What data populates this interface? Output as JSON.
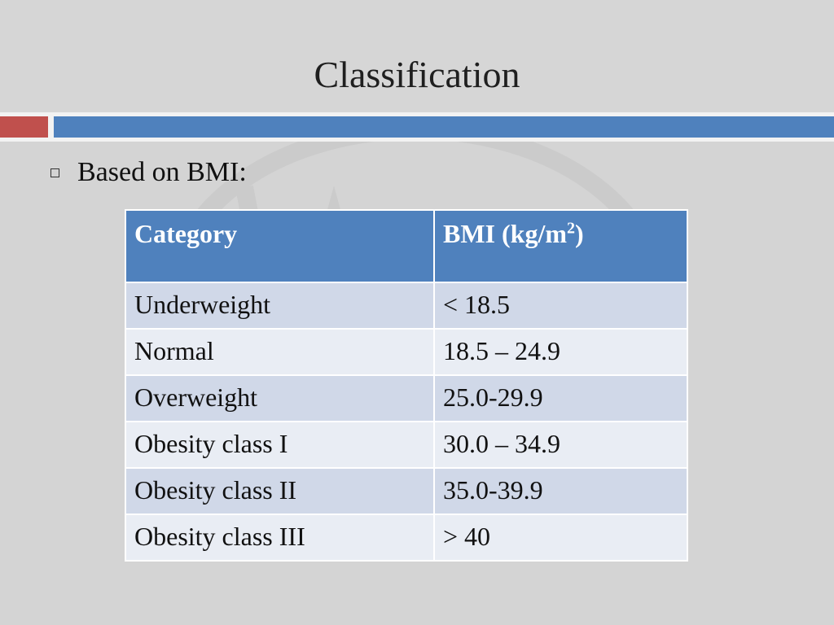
{
  "slide": {
    "title": "Classification",
    "bullet": "Based on BMI:"
  },
  "table": {
    "headers": {
      "category": "Category",
      "bmi_prefix": "BMI (kg/m",
      "bmi_superscript": "2",
      "bmi_suffix": ")"
    },
    "rows": [
      {
        "category": "Underweight",
        "bmi": "< 18.5"
      },
      {
        "category": "Normal",
        "bmi": "18.5 – 24.9"
      },
      {
        "category": "Overweight",
        "bmi": "25.0-29.9"
      },
      {
        "category": "Obesity class I",
        "bmi": "30.0 – 34.9"
      },
      {
        "category": "Obesity class II",
        "bmi": "35.0-39.9"
      },
      {
        "category": "Obesity class III",
        "bmi": "> 40"
      }
    ]
  },
  "colors": {
    "header_blue": "#4f81bd",
    "accent_red": "#c0504d",
    "row_dark": "#d0d8e8",
    "row_light": "#e9edf4",
    "background": "#d4d4d4"
  },
  "icons": {
    "bullet": "hollow-square-bullet-icon",
    "watermark": "watermark-logo-icon"
  }
}
